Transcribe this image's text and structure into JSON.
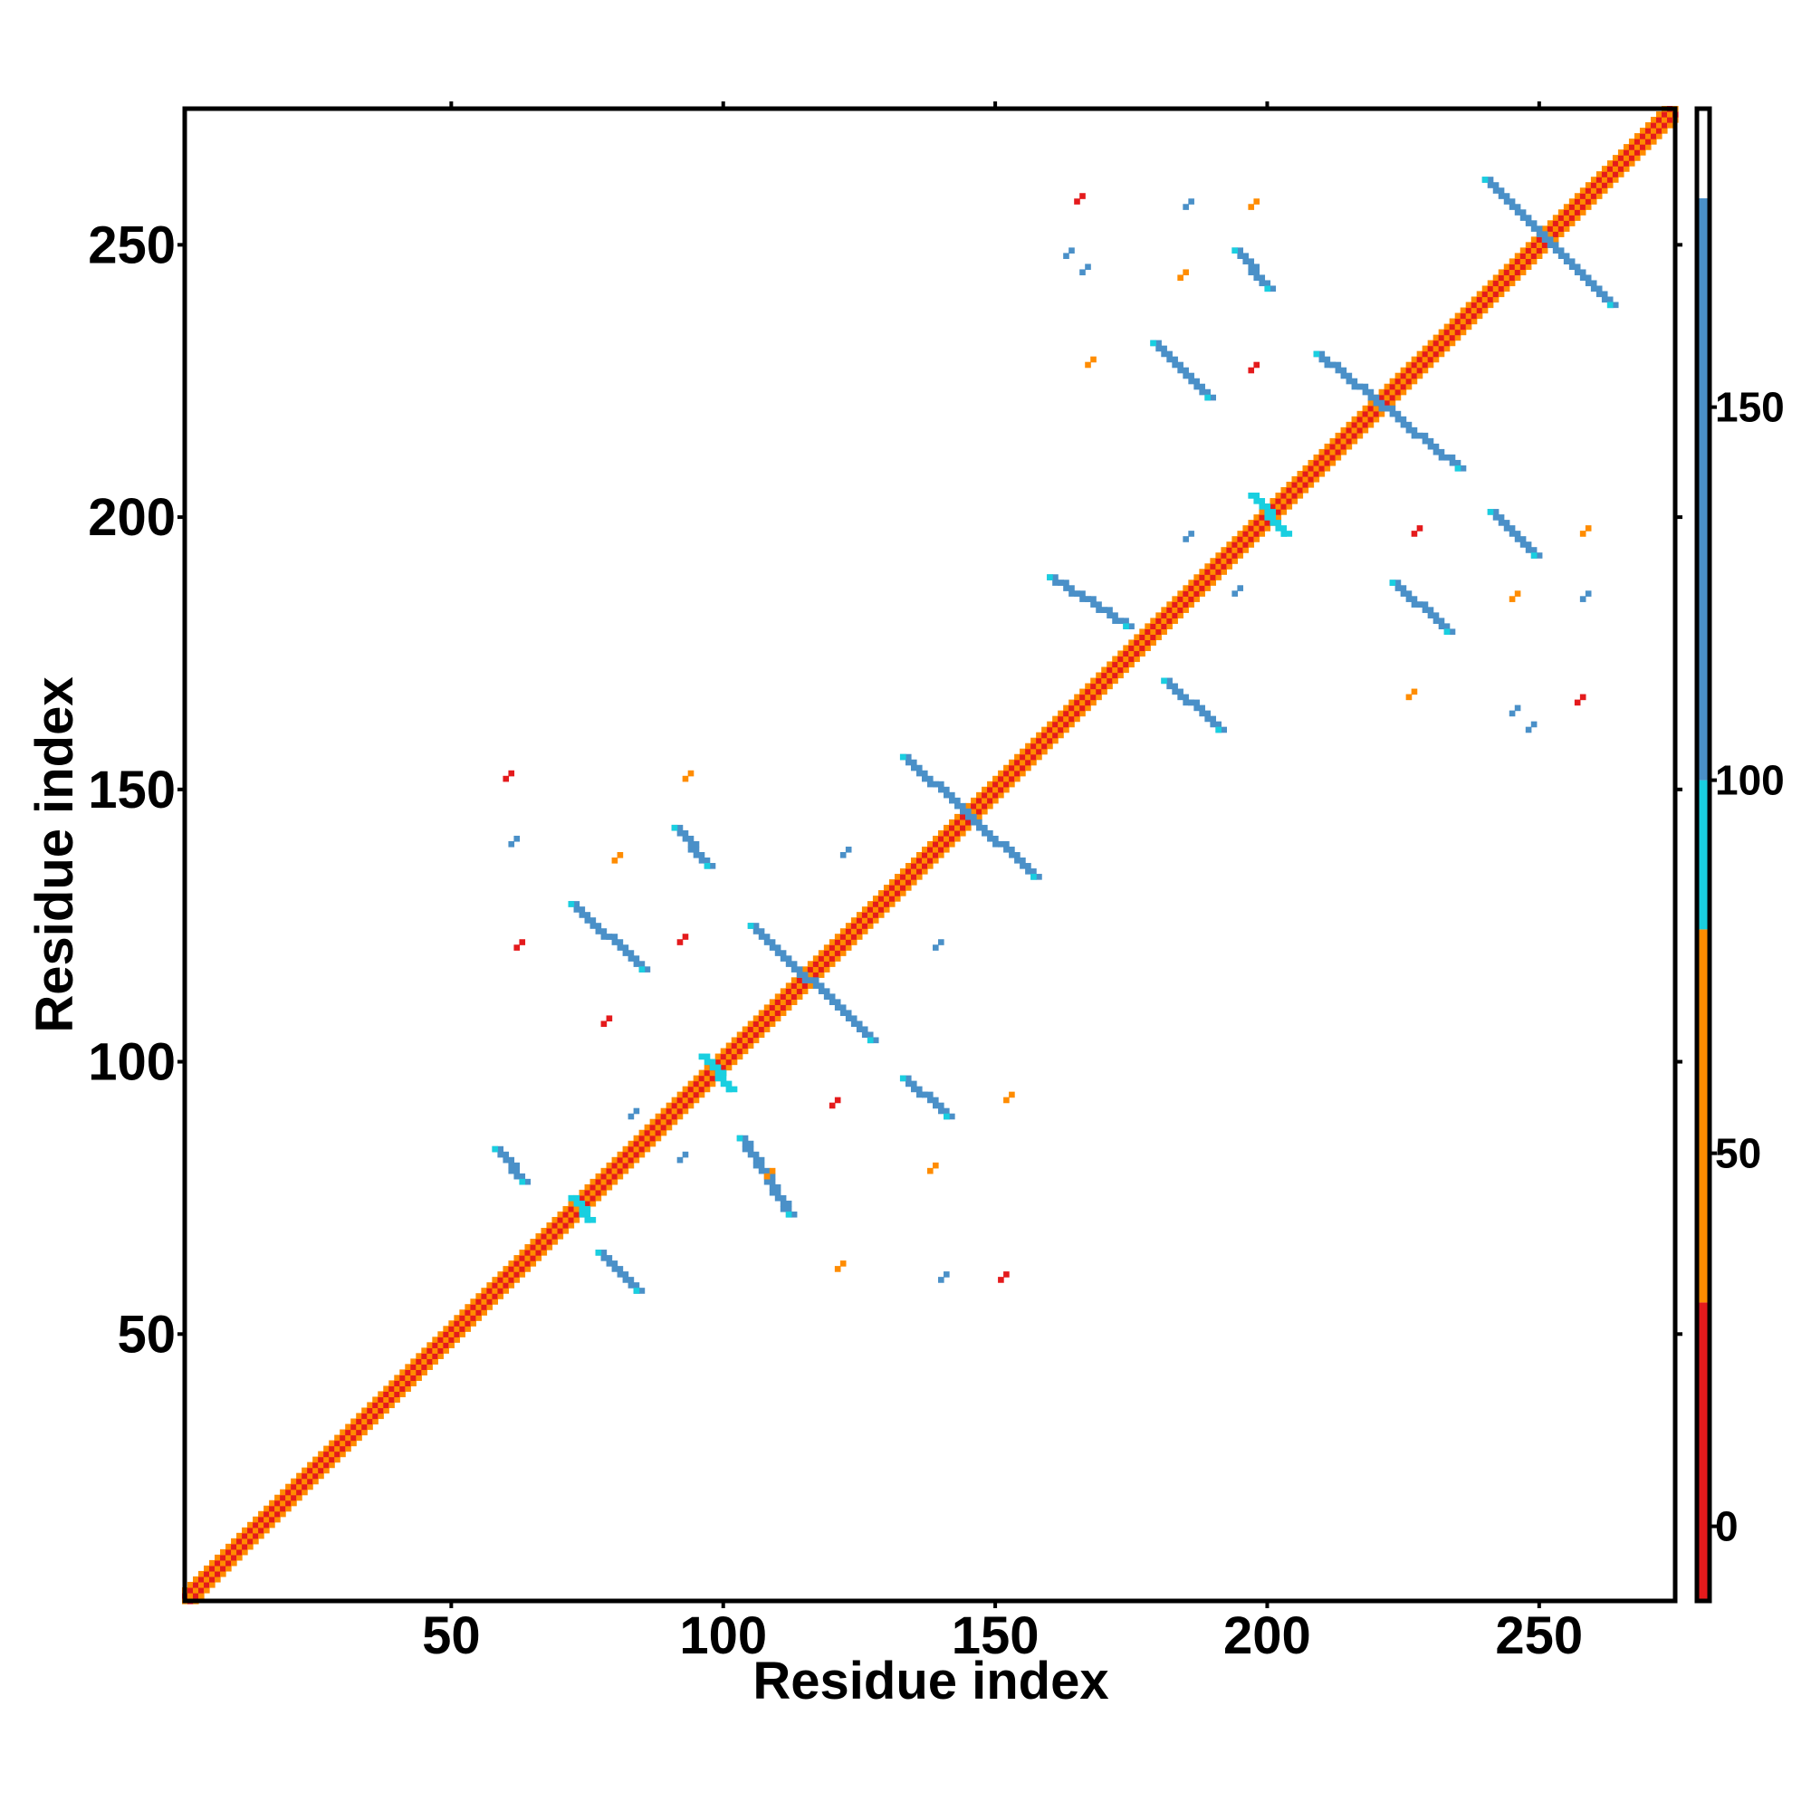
{
  "chart_data": {
    "type": "heatmap",
    "title": "",
    "xlabel": "Residue index",
    "ylabel": "Residue index",
    "xlim": [
      1,
      275
    ],
    "ylim": [
      1,
      275
    ],
    "x_ticks": [
      50,
      100,
      150,
      200,
      250
    ],
    "y_ticks": [
      50,
      100,
      150,
      200,
      250
    ],
    "colorbar": {
      "range": [
        -10,
        190
      ],
      "ticks": [
        0,
        50,
        100,
        150
      ],
      "bands": [
        {
          "from": -10,
          "to": 30,
          "color": "#e41a1c"
        },
        {
          "from": 30,
          "to": 80,
          "color": "#ff8c00"
        },
        {
          "from": 80,
          "to": 100,
          "color": "#19cfe0"
        },
        {
          "from": 100,
          "to": 178,
          "color": "#4a90c8"
        },
        {
          "from": 178,
          "to": 190,
          "color": "#ffffff"
        }
      ]
    },
    "colors": {
      "red": "#e41a1c",
      "orange": "#ff8c00",
      "cyan": "#19cfe0",
      "blue": "#4a90c8"
    },
    "diagonal": {
      "from": 1,
      "to": 275
    },
    "strands": [
      {
        "x1": 58,
        "y1": 84,
        "x2": 63,
        "y2": 78,
        "color": "blue"
      },
      {
        "x1": 77,
        "y1": 65,
        "x2": 84,
        "y2": 58,
        "color": "blue"
      },
      {
        "x1": 72,
        "y1": 75,
        "x2": 75,
        "y2": 71,
        "color": "cyan"
      },
      {
        "x1": 72,
        "y1": 129,
        "x2": 85,
        "y2": 117,
        "color": "blue"
      },
      {
        "x1": 91,
        "y1": 143,
        "x2": 97,
        "y2": 136,
        "color": "blue"
      },
      {
        "x1": 96,
        "y1": 101,
        "x2": 101,
        "y2": 95,
        "color": "cyan"
      },
      {
        "x1": 105,
        "y1": 125,
        "x2": 127,
        "y2": 104,
        "color": "blue"
      },
      {
        "x1": 103,
        "y1": 86,
        "x2": 112,
        "y2": 72,
        "color": "blue"
      },
      {
        "x1": 133,
        "y1": 97,
        "x2": 141,
        "y2": 90,
        "color": "blue"
      },
      {
        "x1": 133,
        "y1": 156,
        "x2": 157,
        "y2": 134,
        "color": "blue"
      },
      {
        "x1": 160,
        "y1": 189,
        "x2": 174,
        "y2": 180,
        "color": "blue"
      },
      {
        "x1": 181,
        "y1": 170,
        "x2": 191,
        "y2": 161,
        "color": "blue"
      },
      {
        "x1": 179,
        "y1": 232,
        "x2": 189,
        "y2": 222,
        "color": "blue"
      },
      {
        "x1": 194,
        "y1": 249,
        "x2": 200,
        "y2": 242,
        "color": "blue"
      },
      {
        "x1": 197,
        "y1": 204,
        "x2": 203,
        "y2": 197,
        "color": "cyan"
      },
      {
        "x1": 209,
        "y1": 230,
        "x2": 235,
        "y2": 209,
        "color": "blue"
      },
      {
        "x1": 223,
        "y1": 188,
        "x2": 233,
        "y2": 179,
        "color": "blue"
      },
      {
        "x1": 241,
        "y1": 201,
        "x2": 249,
        "y2": 193,
        "color": "blue"
      },
      {
        "x1": 240,
        "y1": 262,
        "x2": 263,
        "y2": 239,
        "color": "blue"
      }
    ],
    "contacts": [
      {
        "x": 60,
        "y": 152,
        "color": "red"
      },
      {
        "x": 61,
        "y": 140,
        "color": "blue"
      },
      {
        "x": 62,
        "y": 121,
        "color": "red"
      },
      {
        "x": 78,
        "y": 107,
        "color": "red"
      },
      {
        "x": 80,
        "y": 137,
        "color": "orange"
      },
      {
        "x": 83,
        "y": 90,
        "color": "blue"
      },
      {
        "x": 92,
        "y": 122,
        "color": "red"
      },
      {
        "x": 93,
        "y": 152,
        "color": "orange"
      },
      {
        "x": 92,
        "y": 82,
        "color": "blue"
      },
      {
        "x": 108,
        "y": 79,
        "color": "orange"
      },
      {
        "x": 120,
        "y": 92,
        "color": "red"
      },
      {
        "x": 121,
        "y": 62,
        "color": "orange"
      },
      {
        "x": 122,
        "y": 138,
        "color": "blue"
      },
      {
        "x": 138,
        "y": 80,
        "color": "orange"
      },
      {
        "x": 139,
        "y": 121,
        "color": "blue"
      },
      {
        "x": 140,
        "y": 60,
        "color": "blue"
      },
      {
        "x": 151,
        "y": 60,
        "color": "red"
      },
      {
        "x": 152,
        "y": 93,
        "color": "orange"
      },
      {
        "x": 165,
        "y": 258,
        "color": "red"
      },
      {
        "x": 163,
        "y": 248,
        "color": "blue"
      },
      {
        "x": 166,
        "y": 245,
        "color": "blue"
      },
      {
        "x": 167,
        "y": 228,
        "color": "orange"
      },
      {
        "x": 185,
        "y": 257,
        "color": "blue"
      },
      {
        "x": 184,
        "y": 244,
        "color": "orange"
      },
      {
        "x": 185,
        "y": 196,
        "color": "blue"
      },
      {
        "x": 194,
        "y": 186,
        "color": "blue"
      },
      {
        "x": 197,
        "y": 257,
        "color": "orange"
      },
      {
        "x": 197,
        "y": 227,
        "color": "red"
      },
      {
        "x": 227,
        "y": 197,
        "color": "red"
      },
      {
        "x": 226,
        "y": 167,
        "color": "orange"
      },
      {
        "x": 245,
        "y": 185,
        "color": "orange"
      },
      {
        "x": 245,
        "y": 164,
        "color": "blue"
      },
      {
        "x": 248,
        "y": 161,
        "color": "blue"
      },
      {
        "x": 258,
        "y": 197,
        "color": "orange"
      },
      {
        "x": 257,
        "y": 166,
        "color": "red"
      },
      {
        "x": 258,
        "y": 185,
        "color": "blue"
      }
    ]
  }
}
